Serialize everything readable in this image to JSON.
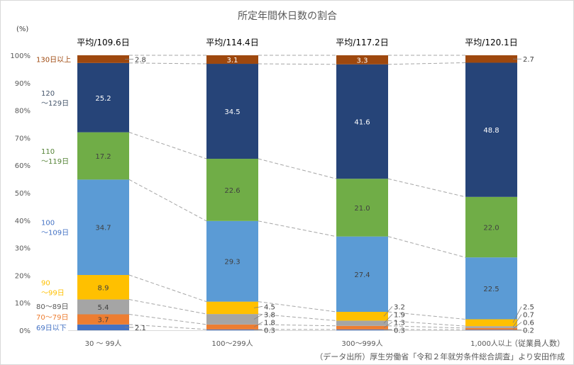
{
  "chart_data": {
    "type": "bar",
    "stacked": true,
    "title": "所定年間休日数の割合",
    "ylabel": "(%)",
    "ylim": [
      0,
      100
    ],
    "yticks": [
      "0%",
      "10%",
      "20%",
      "30%",
      "40%",
      "50%",
      "60%",
      "70%",
      "80%",
      "90%",
      "100%"
    ],
    "categories": [
      "30 〜 99人",
      "100〜299人",
      "300〜999人",
      "1,000人以上"
    ],
    "x_unit_label": "（従業員人数）",
    "averages": [
      "平均/109.6日",
      "平均/114.4日",
      "平均/117.2日",
      "平均/120.1日"
    ],
    "series": [
      {
        "name": "69日以下",
        "color": "#4472c4",
        "label_lines": [
          "69日以下"
        ],
        "values": [
          2.1,
          0.3,
          0.3,
          0.2
        ]
      },
      {
        "name": "70〜79日",
        "color": "#ed7d31",
        "label_lines": [
          "70〜79日"
        ],
        "values": [
          3.7,
          1.8,
          1.3,
          0.6
        ]
      },
      {
        "name": "80〜89日",
        "color": "#a5a5a5",
        "label_lines": [
          "80〜89日"
        ],
        "values": [
          5.4,
          3.8,
          1.9,
          0.7
        ]
      },
      {
        "name": "90〜99日",
        "color": "#ffc000",
        "label_lines": [
          "90",
          "〜99日"
        ],
        "values": [
          8.9,
          4.5,
          3.2,
          2.5
        ]
      },
      {
        "name": "100〜109日",
        "color": "#5b9bd5",
        "label_lines": [
          "100",
          "〜109日"
        ],
        "values": [
          34.7,
          29.3,
          27.4,
          22.5
        ]
      },
      {
        "name": "110〜119日",
        "color": "#70ad47",
        "label_lines": [
          "110",
          "〜119日"
        ],
        "values": [
          17.2,
          22.6,
          21.0,
          22.0
        ]
      },
      {
        "name": "120〜129日",
        "color": "#264478",
        "label_lines": [
          "120",
          "〜129日"
        ],
        "values": [
          25.2,
          34.5,
          41.6,
          48.8
        ]
      },
      {
        "name": "130日以上",
        "color": "#9e480e",
        "label_lines": [
          "130日以上"
        ],
        "values": [
          2.8,
          3.1,
          3.3,
          2.7
        ]
      }
    ],
    "legend_text_colors": [
      "#4472c4",
      "#ed7d31",
      "#595959",
      "#ffc000",
      "#4472c4",
      "#548235",
      "#44546a",
      "#9e480e"
    ],
    "source": "（データ出所）厚生労働省「令和２年就労条件総合調査」より安田作成"
  }
}
